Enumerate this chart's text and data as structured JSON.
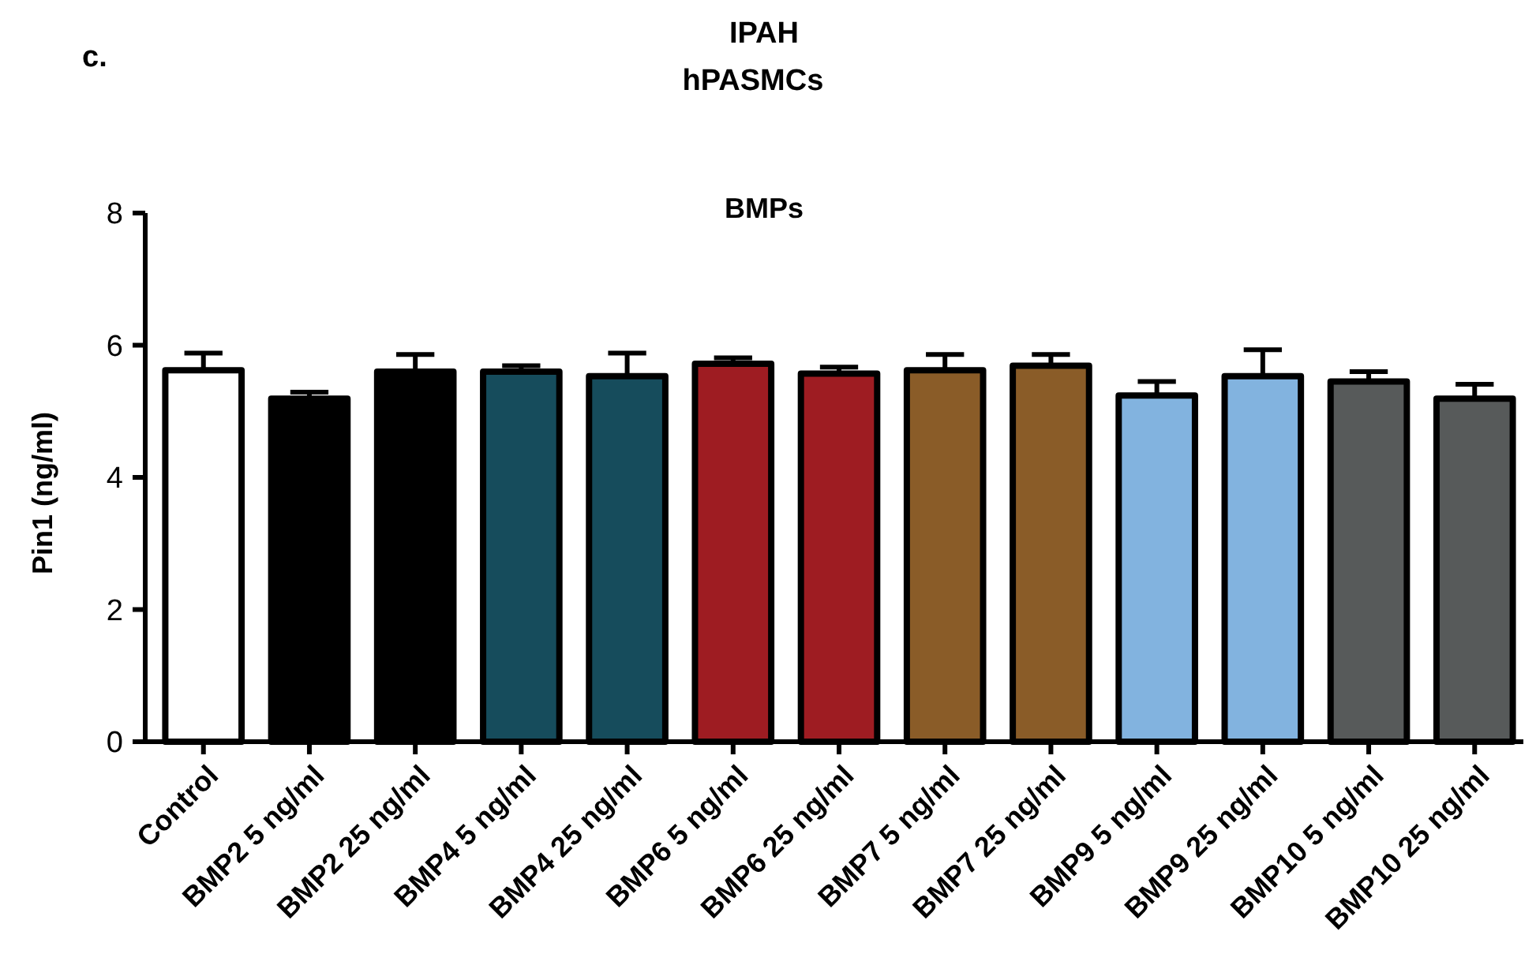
{
  "chart_data": {
    "type": "bar",
    "title": "IPAH",
    "subtitle": "hPASMCs",
    "ylabel": "Pin1  (ng/ml)",
    "annotations": [
      "c.",
      "BMPs"
    ],
    "categories": [
      "Control",
      "BMP2 5 ng/ml",
      "BMP2 25 ng/ml",
      "BMP4 5 ng/ml",
      "BMP4 25 ng/ml",
      "BMP6 5 ng/ml",
      "BMP6 25 ng/ml",
      "BMP7 5 ng/ml",
      "BMP7 25 ng/ml",
      "BMP9 5 ng/ml",
      "BMP9 25 ng/ml",
      "BMP10 5 ng/ml",
      "BMP10 25 ng/ml"
    ],
    "values": [
      5.62,
      5.19,
      5.6,
      5.6,
      5.53,
      5.72,
      5.57,
      5.62,
      5.69,
      5.24,
      5.53,
      5.45,
      5.19
    ],
    "errors": [
      [
        5.62,
        5.88
      ],
      [
        5.19,
        5.29
      ],
      [
        5.6,
        5.86
      ],
      [
        5.6,
        5.69
      ],
      [
        5.53,
        5.88
      ],
      [
        5.72,
        5.81
      ],
      [
        5.57,
        5.67
      ],
      [
        5.62,
        5.86
      ],
      [
        5.69,
        5.86
      ],
      [
        5.24,
        5.45
      ],
      [
        5.53,
        5.93
      ],
      [
        5.45,
        5.6
      ],
      [
        5.19,
        5.41
      ]
    ],
    "colors": [
      "#ffffff",
      "#000000",
      "#000000",
      "#164c5c",
      "#164c5c",
      "#9e1c22",
      "#9e1c22",
      "#8a5c28",
      "#8a5c28",
      "#82b3df",
      "#82b3df",
      "#575a5a",
      "#575a5a"
    ],
    "ylim": [
      0,
      8
    ],
    "yticks": [
      0,
      2,
      4,
      6,
      8
    ],
    "grid": false
  }
}
